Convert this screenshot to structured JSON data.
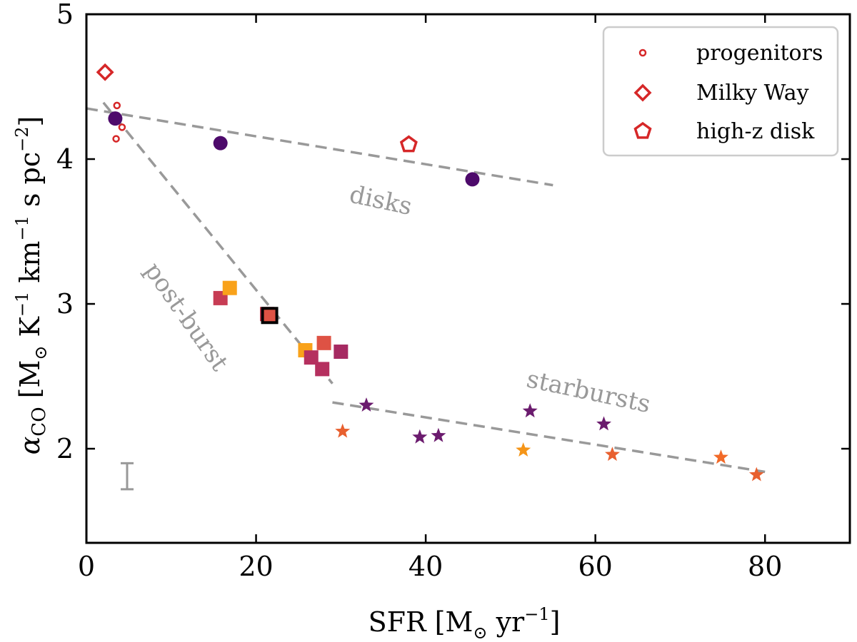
{
  "chart_data": {
    "type": "scatter",
    "xlabel_main": "SFR [M",
    "xlabel_unit": " yr",
    "xlabel_exp": "−1",
    "xlabel_close": "]",
    "ylabel_symbol": "α",
    "ylabel_sub": "CO",
    "ylabel_unit_a": " [M",
    "ylabel_unit_b": " K",
    "ylabel_exp1": "−1",
    "ylabel_unit_c": " km",
    "ylabel_exp2": "−1",
    "ylabel_unit_d": " s pc",
    "ylabel_exp3": "−2",
    "ylabel_close": "]",
    "sun_symbol": "⊙",
    "xlim": [
      0,
      90
    ],
    "ylim": [
      1.35,
      5.0
    ],
    "xticks": [
      0,
      20,
      40,
      60,
      80
    ],
    "yticks": [
      2,
      3,
      4,
      5
    ],
    "legend": [
      {
        "marker": "small-circle-open",
        "label": "progenitors"
      },
      {
        "marker": "diamond-open",
        "label": "Milky Way"
      },
      {
        "marker": "pentagon-open",
        "label": "high-z disk"
      }
    ],
    "annotations": [
      {
        "text": "disks",
        "x": 34.5,
        "y": 3.66,
        "rotate": 12
      },
      {
        "text": "post-burst",
        "x": 11.0,
        "y": 2.88,
        "rotate": 55
      },
      {
        "text": "starbursts",
        "x": 59,
        "y": 2.34,
        "rotate": 12
      }
    ],
    "trend_lines": [
      {
        "name": "disks",
        "points": [
          [
            0,
            4.35
          ],
          [
            55,
            3.82
          ]
        ]
      },
      {
        "name": "post-burst",
        "points": [
          [
            2,
            4.39
          ],
          [
            29,
            2.45
          ]
        ]
      },
      {
        "name": "starbursts",
        "points": [
          [
            29,
            2.32
          ],
          [
            80,
            1.84
          ]
        ]
      }
    ],
    "error_bar": {
      "x": 4.8,
      "y_low": 1.72,
      "y_high": 1.9
    },
    "series": [
      {
        "name": "progenitors",
        "marker": "small-circle-open",
        "color": "#d62728",
        "points": [
          [
            3.6,
            4.37
          ],
          [
            4.2,
            4.22
          ],
          [
            3.5,
            4.14
          ],
          [
            3.4,
            4.3
          ]
        ]
      },
      {
        "name": "Milky Way",
        "marker": "diamond-open",
        "color": "#d62728",
        "points": [
          [
            2.2,
            4.6
          ]
        ]
      },
      {
        "name": "high-z disk",
        "marker": "pentagon-open",
        "color": "#d62728",
        "points": [
          [
            38.0,
            4.1
          ]
        ]
      },
      {
        "name": "disks",
        "marker": "circle",
        "points": [
          [
            3.4,
            4.28,
            "#4d0a6b"
          ],
          [
            15.8,
            4.11,
            "#4d0a6b"
          ],
          [
            45.5,
            3.86,
            "#4d0a6b"
          ]
        ]
      },
      {
        "name": "post-burst",
        "marker": "square",
        "points": [
          [
            15.8,
            3.04,
            "#c73c54"
          ],
          [
            16.9,
            3.11,
            "#f9a21a"
          ],
          [
            21.3,
            2.93,
            "#c73c54"
          ],
          [
            21.6,
            2.92,
            "#de5244"
          ],
          [
            25.8,
            2.68,
            "#f9a21a"
          ],
          [
            26.5,
            2.63,
            "#b5305f"
          ],
          [
            28.0,
            2.73,
            "#de5244"
          ],
          [
            27.8,
            2.55,
            "#b5305f"
          ],
          [
            30.0,
            2.67,
            "#a62a62"
          ]
        ]
      },
      {
        "name": "starbursts",
        "marker": "star",
        "points": [
          [
            33.0,
            2.3,
            "#6b1b6e"
          ],
          [
            30.2,
            2.12,
            "#e8602f"
          ],
          [
            39.3,
            2.08,
            "#6b1b6e"
          ],
          [
            41.5,
            2.09,
            "#6b1b6e"
          ],
          [
            52.3,
            2.26,
            "#6b1b6e"
          ],
          [
            61.0,
            2.17,
            "#6b1b6e"
          ],
          [
            51.5,
            1.99,
            "#f59518"
          ],
          [
            62.0,
            1.96,
            "#e8602f"
          ],
          [
            74.8,
            1.94,
            "#f26a28"
          ],
          [
            79.0,
            1.82,
            "#e8602f"
          ]
        ]
      }
    ]
  }
}
